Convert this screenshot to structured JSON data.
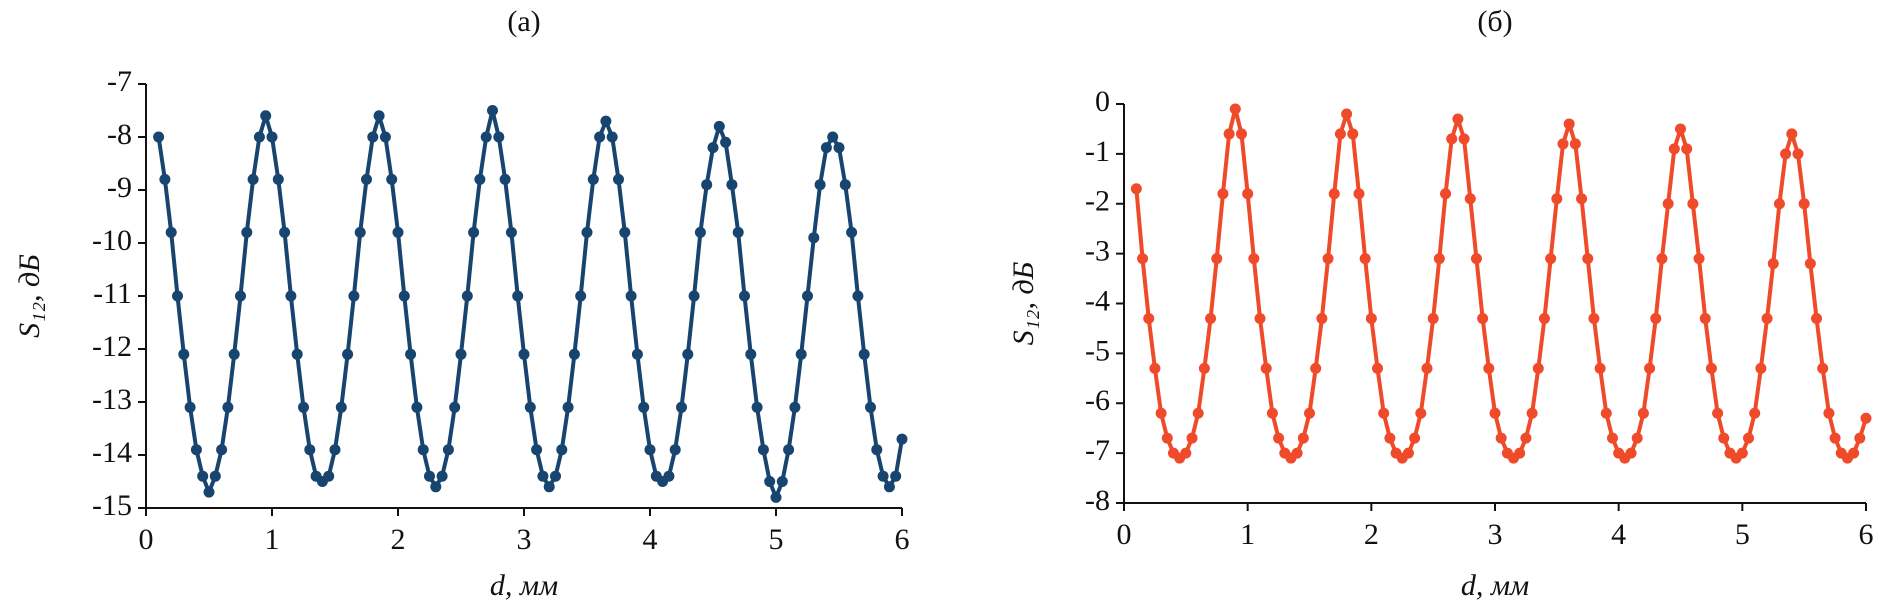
{
  "chart_data": [
    {
      "type": "line",
      "title": "(а)",
      "xlabel": "d, мм",
      "ylabel": "S₁₂, дБ",
      "xlim": [
        0,
        6
      ],
      "xticks": [
        0,
        1,
        2,
        3,
        4,
        5,
        6
      ],
      "ylim": [
        -15,
        -7
      ],
      "yticks": [
        -7,
        -8,
        -9,
        -10,
        -11,
        -12,
        -13,
        -14,
        -15
      ],
      "grid": false,
      "x": [
        0.1,
        0.15,
        0.2,
        0.25,
        0.3,
        0.35,
        0.4,
        0.45,
        0.5,
        0.55,
        0.6,
        0.65,
        0.7,
        0.75,
        0.8,
        0.85,
        0.9,
        0.95,
        1.0,
        1.05,
        1.1,
        1.15,
        1.2,
        1.25,
        1.3,
        1.35,
        1.4,
        1.45,
        1.5,
        1.55,
        1.6,
        1.65,
        1.7,
        1.75,
        1.8,
        1.85,
        1.9,
        1.95,
        2.0,
        2.05,
        2.1,
        2.15,
        2.2,
        2.25,
        2.3,
        2.35,
        2.4,
        2.45,
        2.5,
        2.55,
        2.6,
        2.65,
        2.7,
        2.75,
        2.8,
        2.85,
        2.9,
        2.95,
        3.0,
        3.05,
        3.1,
        3.15,
        3.2,
        3.25,
        3.3,
        3.35,
        3.4,
        3.45,
        3.5,
        3.55,
        3.6,
        3.65,
        3.7,
        3.75,
        3.8,
        3.85,
        3.9,
        3.95,
        4.0,
        4.05,
        4.1,
        4.15,
        4.2,
        4.25,
        4.3,
        4.35,
        4.4,
        4.45,
        4.5,
        4.55,
        4.6,
        4.65,
        4.7,
        4.75,
        4.8,
        4.85,
        4.9,
        4.95,
        5.0,
        5.05,
        5.1,
        5.15,
        5.2,
        5.25,
        5.3,
        5.35,
        5.4,
        5.45,
        5.5,
        5.55,
        5.6,
        5.65,
        5.7,
        5.75,
        5.8,
        5.85,
        5.9,
        5.95,
        6.0
      ],
      "series": [
        {
          "color": "#17456f",
          "values": [
            -8.0,
            -8.8,
            -9.8,
            -11.0,
            -12.1,
            -13.1,
            -13.9,
            -14.4,
            -14.7,
            -14.4,
            -13.9,
            -13.1,
            -12.1,
            -11.0,
            -9.8,
            -8.8,
            -8.0,
            -7.6,
            -8.0,
            -8.8,
            -9.8,
            -11.0,
            -12.1,
            -13.1,
            -13.9,
            -14.4,
            -14.5,
            -14.4,
            -13.9,
            -13.1,
            -12.1,
            -11.0,
            -9.8,
            -8.8,
            -8.0,
            -7.6,
            -8.0,
            -8.8,
            -9.8,
            -11.0,
            -12.1,
            -13.1,
            -13.9,
            -14.4,
            -14.6,
            -14.4,
            -13.9,
            -13.1,
            -12.1,
            -11.0,
            -9.8,
            -8.8,
            -8.0,
            -7.5,
            -8.0,
            -8.8,
            -9.8,
            -11.0,
            -12.1,
            -13.1,
            -13.9,
            -14.4,
            -14.6,
            -14.4,
            -13.9,
            -13.1,
            -12.1,
            -11.0,
            -9.8,
            -8.8,
            -8.0,
            -7.7,
            -8.0,
            -8.8,
            -9.8,
            -11.0,
            -12.1,
            -13.1,
            -13.9,
            -14.4,
            -14.5,
            -14.4,
            -13.9,
            -13.1,
            -12.1,
            -11.0,
            -9.8,
            -8.9,
            -8.2,
            -7.8,
            -8.1,
            -8.9,
            -9.8,
            -11.0,
            -12.1,
            -13.1,
            -13.9,
            -14.5,
            -14.8,
            -14.5,
            -13.9,
            -13.1,
            -12.1,
            -11.0,
            -9.9,
            -8.9,
            -8.2,
            -8.0,
            -8.2,
            -8.9,
            -9.8,
            -11.0,
            -12.1,
            -13.1,
            -13.9,
            -14.4,
            -14.6,
            -14.4,
            -13.7
          ]
        }
      ]
    },
    {
      "type": "line",
      "title": "(б)",
      "xlabel": "d, мм",
      "ylabel": "S₁₂, дБ",
      "xlim": [
        0,
        6
      ],
      "xticks": [
        0,
        1,
        2,
        3,
        4,
        5,
        6
      ],
      "ylim": [
        -8,
        0
      ],
      "yticks": [
        0,
        -1,
        -2,
        -3,
        -4,
        -5,
        -6,
        -7,
        -8
      ],
      "grid": false,
      "x": [
        0.1,
        0.15,
        0.2,
        0.25,
        0.3,
        0.35,
        0.4,
        0.45,
        0.5,
        0.55,
        0.6,
        0.65,
        0.7,
        0.75,
        0.8,
        0.85,
        0.9,
        0.95,
        1.0,
        1.05,
        1.1,
        1.15,
        1.2,
        1.25,
        1.3,
        1.35,
        1.4,
        1.45,
        1.5,
        1.55,
        1.6,
        1.65,
        1.7,
        1.75,
        1.8,
        1.85,
        1.9,
        1.95,
        2.0,
        2.05,
        2.1,
        2.15,
        2.2,
        2.25,
        2.3,
        2.35,
        2.4,
        2.45,
        2.5,
        2.55,
        2.6,
        2.65,
        2.7,
        2.75,
        2.8,
        2.85,
        2.9,
        2.95,
        3.0,
        3.05,
        3.1,
        3.15,
        3.2,
        3.25,
        3.3,
        3.35,
        3.4,
        3.45,
        3.5,
        3.55,
        3.6,
        3.65,
        3.7,
        3.75,
        3.8,
        3.85,
        3.9,
        3.95,
        4.0,
        4.05,
        4.1,
        4.15,
        4.2,
        4.25,
        4.3,
        4.35,
        4.4,
        4.45,
        4.5,
        4.55,
        4.6,
        4.65,
        4.7,
        4.75,
        4.8,
        4.85,
        4.9,
        4.95,
        5.0,
        5.05,
        5.1,
        5.15,
        5.2,
        5.25,
        5.3,
        5.35,
        5.4,
        5.45,
        5.5,
        5.55,
        5.6,
        5.65,
        5.7,
        5.75,
        5.8,
        5.85,
        5.9,
        5.95,
        6.0
      ],
      "series": [
        {
          "color": "#ef4a2a",
          "values": [
            -1.7,
            -3.1,
            -4.3,
            -5.3,
            -6.2,
            -6.7,
            -7.0,
            -7.1,
            -7.0,
            -6.7,
            -6.2,
            -5.3,
            -4.3,
            -3.1,
            -1.8,
            -0.6,
            -0.1,
            -0.6,
            -1.8,
            -3.1,
            -4.3,
            -5.3,
            -6.2,
            -6.7,
            -7.0,
            -7.1,
            -7.0,
            -6.7,
            -6.2,
            -5.3,
            -4.3,
            -3.1,
            -1.8,
            -0.6,
            -0.2,
            -0.6,
            -1.8,
            -3.1,
            -4.3,
            -5.3,
            -6.2,
            -6.7,
            -7.0,
            -7.1,
            -7.0,
            -6.7,
            -6.2,
            -5.3,
            -4.3,
            -3.1,
            -1.8,
            -0.7,
            -0.3,
            -0.7,
            -1.9,
            -3.1,
            -4.3,
            -5.3,
            -6.2,
            -6.7,
            -7.0,
            -7.1,
            -7.0,
            -6.7,
            -6.2,
            -5.3,
            -4.3,
            -3.1,
            -1.9,
            -0.8,
            -0.4,
            -0.8,
            -1.9,
            -3.1,
            -4.3,
            -5.3,
            -6.2,
            -6.7,
            -7.0,
            -7.1,
            -7.0,
            -6.7,
            -6.2,
            -5.3,
            -4.3,
            -3.1,
            -2.0,
            -0.9,
            -0.5,
            -0.9,
            -2.0,
            -3.1,
            -4.3,
            -5.3,
            -6.2,
            -6.7,
            -7.0,
            -7.1,
            -7.0,
            -6.7,
            -6.2,
            -5.3,
            -4.3,
            -3.2,
            -2.0,
            -1.0,
            -0.6,
            -1.0,
            -2.0,
            -3.2,
            -4.3,
            -5.3,
            -6.2,
            -6.7,
            -7.0,
            -7.1,
            -7.0,
            -6.7,
            -6.3
          ]
        }
      ]
    }
  ]
}
